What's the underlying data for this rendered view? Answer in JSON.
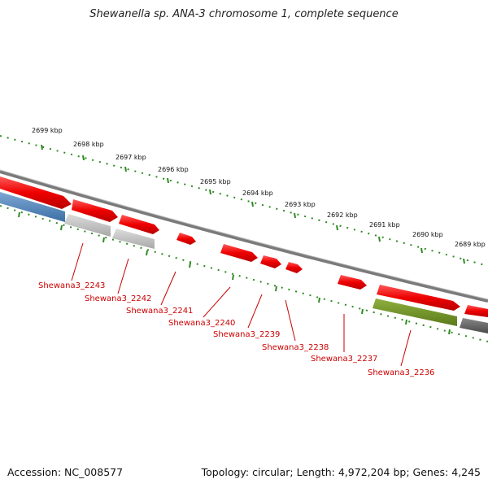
{
  "title": "Shewanella sp. ANA-3 chromosome 1, complete sequence",
  "footer": {
    "accession": "Accession: NC_008577",
    "summary": "Topology: circular; Length: 4,972,204 bp; Genes: 4,245"
  },
  "ruler_labels": [
    "2699 kbp",
    "2698 kbp",
    "2697 kbp",
    "2696 kbp",
    "2695 kbp",
    "2694 kbp",
    "2693 kbp",
    "2692 kbp",
    "2691 kbp",
    "2690 kbp",
    "2689 kbp"
  ],
  "gene_labels": [
    "Shewana3_2243",
    "Shewana3_2242",
    "Shewana3_2241",
    "Shewana3_2240",
    "Shewana3_2239",
    "Shewana3_2238",
    "Shewana3_2237",
    "Shewana3_2236"
  ],
  "colors": {
    "forward_cds": "#ee1111",
    "reverse_cds_blue": "#4a7fb5",
    "reverse_gray": "#b8b8b8",
    "reverse_green": "#6b8e23",
    "reverse_dark": "#666666",
    "backbone": "#888888",
    "ruler": "#2e8b22",
    "label": "#cc0000"
  }
}
